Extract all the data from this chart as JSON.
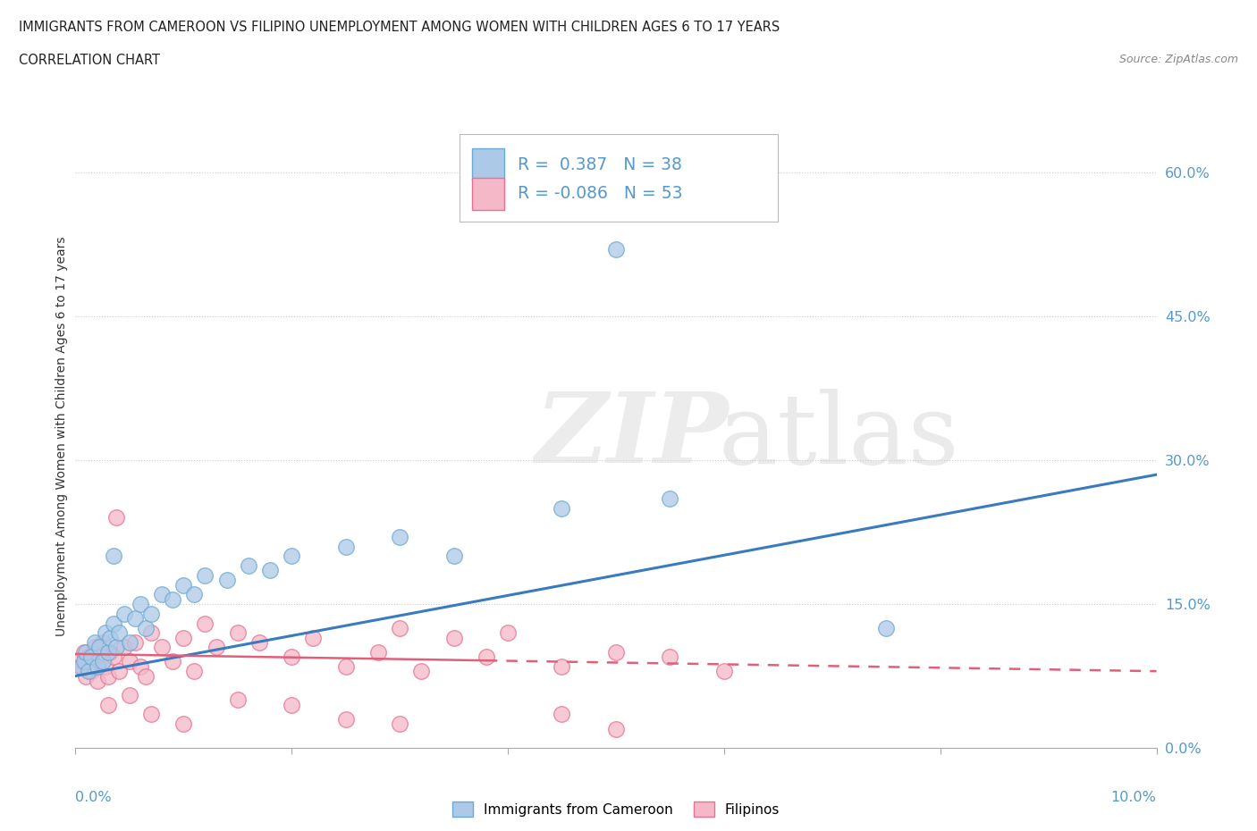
{
  "title": "IMMIGRANTS FROM CAMEROON VS FILIPINO UNEMPLOYMENT AMONG WOMEN WITH CHILDREN AGES 6 TO 17 YEARS",
  "subtitle": "CORRELATION CHART",
  "source": "Source: ZipAtlas.com",
  "ylabel": "Unemployment Among Women with Children Ages 6 to 17 years",
  "yticks": [
    "0.0%",
    "15.0%",
    "30.0%",
    "45.0%",
    "60.0%"
  ],
  "ytick_vals": [
    0.0,
    15.0,
    30.0,
    45.0,
    60.0
  ],
  "xrange": [
    0.0,
    10.0
  ],
  "yrange": [
    0.0,
    65.0
  ],
  "r_cameroon": 0.387,
  "n_cameroon": 38,
  "r_filipino": -0.086,
  "n_filipino": 53,
  "color_cameroon_fill": "#adc9e8",
  "color_cameroon_edge": "#6aaad4",
  "color_filipino_fill": "#f5b8c8",
  "color_filipino_edge": "#e87090",
  "color_line_cameroon": "#3a7bbf",
  "color_line_filipino": "#e0607a",
  "color_ytick": "#5599cc",
  "legend_label_cameroon": "Immigrants from Cameroon",
  "legend_label_filipino": "Filipinos",
  "cam_line_x0": 0.0,
  "cam_line_y0": 7.5,
  "cam_line_x1": 10.0,
  "cam_line_y1": 28.5,
  "fil_line_x0": 0.0,
  "fil_line_y0": 9.8,
  "fil_line_x1": 10.0,
  "fil_line_y1": 8.0,
  "cameroon_points": [
    [
      0.05,
      8.5
    ],
    [
      0.08,
      9.0
    ],
    [
      0.1,
      10.0
    ],
    [
      0.12,
      8.0
    ],
    [
      0.15,
      9.5
    ],
    [
      0.18,
      11.0
    ],
    [
      0.2,
      8.5
    ],
    [
      0.22,
      10.5
    ],
    [
      0.25,
      9.0
    ],
    [
      0.28,
      12.0
    ],
    [
      0.3,
      10.0
    ],
    [
      0.32,
      11.5
    ],
    [
      0.35,
      13.0
    ],
    [
      0.38,
      10.5
    ],
    [
      0.4,
      12.0
    ],
    [
      0.45,
      14.0
    ],
    [
      0.5,
      11.0
    ],
    [
      0.55,
      13.5
    ],
    [
      0.6,
      15.0
    ],
    [
      0.65,
      12.5
    ],
    [
      0.7,
      14.0
    ],
    [
      0.8,
      16.0
    ],
    [
      0.9,
      15.5
    ],
    [
      1.0,
      17.0
    ],
    [
      1.1,
      16.0
    ],
    [
      1.2,
      18.0
    ],
    [
      1.4,
      17.5
    ],
    [
      1.6,
      19.0
    ],
    [
      1.8,
      18.5
    ],
    [
      2.0,
      20.0
    ],
    [
      2.5,
      21.0
    ],
    [
      3.0,
      22.0
    ],
    [
      3.5,
      20.0
    ],
    [
      4.5,
      25.0
    ],
    [
      5.5,
      26.0
    ],
    [
      5.0,
      52.0
    ],
    [
      7.5,
      12.5
    ],
    [
      0.35,
      20.0
    ]
  ],
  "filipino_points": [
    [
      0.03,
      9.0
    ],
    [
      0.06,
      8.5
    ],
    [
      0.08,
      10.0
    ],
    [
      0.1,
      7.5
    ],
    [
      0.12,
      9.5
    ],
    [
      0.15,
      8.0
    ],
    [
      0.18,
      10.5
    ],
    [
      0.2,
      7.0
    ],
    [
      0.22,
      9.0
    ],
    [
      0.25,
      11.0
    ],
    [
      0.28,
      8.5
    ],
    [
      0.3,
      7.5
    ],
    [
      0.32,
      10.0
    ],
    [
      0.35,
      9.5
    ],
    [
      0.38,
      24.0
    ],
    [
      0.4,
      8.0
    ],
    [
      0.45,
      10.5
    ],
    [
      0.5,
      9.0
    ],
    [
      0.55,
      11.0
    ],
    [
      0.6,
      8.5
    ],
    [
      0.65,
      7.5
    ],
    [
      0.7,
      12.0
    ],
    [
      0.8,
      10.5
    ],
    [
      0.9,
      9.0
    ],
    [
      1.0,
      11.5
    ],
    [
      1.1,
      8.0
    ],
    [
      1.2,
      13.0
    ],
    [
      1.3,
      10.5
    ],
    [
      1.5,
      12.0
    ],
    [
      1.7,
      11.0
    ],
    [
      2.0,
      9.5
    ],
    [
      2.2,
      11.5
    ],
    [
      2.5,
      8.5
    ],
    [
      2.8,
      10.0
    ],
    [
      3.0,
      12.5
    ],
    [
      3.2,
      8.0
    ],
    [
      3.5,
      11.5
    ],
    [
      3.8,
      9.5
    ],
    [
      4.0,
      12.0
    ],
    [
      4.5,
      8.5
    ],
    [
      5.0,
      10.0
    ],
    [
      5.5,
      9.5
    ],
    [
      6.0,
      8.0
    ],
    [
      0.3,
      4.5
    ],
    [
      0.5,
      5.5
    ],
    [
      0.7,
      3.5
    ],
    [
      1.0,
      2.5
    ],
    [
      1.5,
      5.0
    ],
    [
      2.0,
      4.5
    ],
    [
      2.5,
      3.0
    ],
    [
      3.0,
      2.5
    ],
    [
      4.5,
      3.5
    ],
    [
      5.0,
      2.0
    ]
  ]
}
